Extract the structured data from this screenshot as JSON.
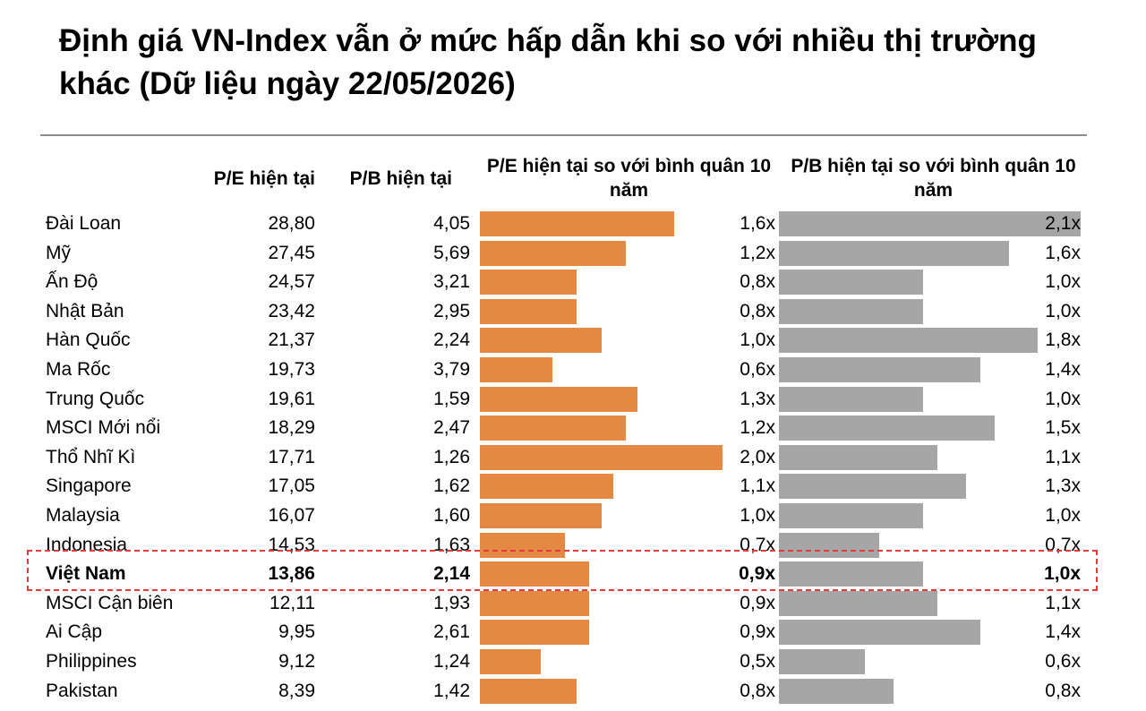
{
  "title": "Định giá VN-Index vẫn ở mức hấp dẫn khi so với nhiều thị trường khác (Dữ liệu ngày 22/05/2026)",
  "headers": {
    "pe": "P/E hiện tại",
    "pb": "P/B hiện tại",
    "pe_ratio": "P/E hiện tại so với bình quân 10 năm",
    "pb_ratio": "P/B hiện tại so với bình quân 10 năm"
  },
  "highlight_color": "#e03a3a",
  "chart_data": {
    "type": "table",
    "title": "Định giá VN-Index vẫn ở mức hấp dẫn khi so với nhiều thị trường khác (Dữ liệu ngày 22/05/2026)",
    "columns": [
      "",
      "P/E hiện tại",
      "P/B hiện tại",
      "P/E hiện tại so với bình quân 10 năm",
      "P/B hiện tại so với bình quân 10 năm"
    ],
    "bar_colors": {
      "pe_ratio": "#e38944",
      "pb_ratio": "#a6a6a6"
    },
    "highlighted_row": "Việt Nam",
    "rows": [
      {
        "market": "Đài Loan",
        "pe": "28,80",
        "pb": "4,05",
        "pe_ratio": 1.6,
        "pe_ratio_label": "1,6x",
        "pb_ratio": 2.1,
        "pb_ratio_label": "2,1x"
      },
      {
        "market": "Mỹ",
        "pe": "27,45",
        "pb": "5,69",
        "pe_ratio": 1.2,
        "pe_ratio_label": "1,2x",
        "pb_ratio": 1.6,
        "pb_ratio_label": "1,6x"
      },
      {
        "market": "Ấn Độ",
        "pe": "24,57",
        "pb": "3,21",
        "pe_ratio": 0.8,
        "pe_ratio_label": "0,8x",
        "pb_ratio": 1.0,
        "pb_ratio_label": "1,0x"
      },
      {
        "market": "Nhật Bản",
        "pe": "23,42",
        "pb": "2,95",
        "pe_ratio": 0.8,
        "pe_ratio_label": "0,8x",
        "pb_ratio": 1.0,
        "pb_ratio_label": "1,0x"
      },
      {
        "market": "Hàn Quốc",
        "pe": "21,37",
        "pb": "2,24",
        "pe_ratio": 1.0,
        "pe_ratio_label": "1,0x",
        "pb_ratio": 1.8,
        "pb_ratio_label": "1,8x"
      },
      {
        "market": "Ma Rốc",
        "pe": "19,73",
        "pb": "3,79",
        "pe_ratio": 0.6,
        "pe_ratio_label": "0,6x",
        "pb_ratio": 1.4,
        "pb_ratio_label": "1,4x"
      },
      {
        "market": "Trung Quốc",
        "pe": "19,61",
        "pb": "1,59",
        "pe_ratio": 1.3,
        "pe_ratio_label": "1,3x",
        "pb_ratio": 1.0,
        "pb_ratio_label": "1,0x"
      },
      {
        "market": "MSCI Mới nổi",
        "pe": "18,29",
        "pb": "2,47",
        "pe_ratio": 1.2,
        "pe_ratio_label": "1,2x",
        "pb_ratio": 1.5,
        "pb_ratio_label": "1,5x"
      },
      {
        "market": "Thổ Nhĩ Kì",
        "pe": "17,71",
        "pb": "1,26",
        "pe_ratio": 2.0,
        "pe_ratio_label": "2,0x",
        "pb_ratio": 1.1,
        "pb_ratio_label": "1,1x"
      },
      {
        "market": "Singapore",
        "pe": "17,05",
        "pb": "1,62",
        "pe_ratio": 1.1,
        "pe_ratio_label": "1,1x",
        "pb_ratio": 1.3,
        "pb_ratio_label": "1,3x"
      },
      {
        "market": "Malaysia",
        "pe": "16,07",
        "pb": "1,60",
        "pe_ratio": 1.0,
        "pe_ratio_label": "1,0x",
        "pb_ratio": 1.0,
        "pb_ratio_label": "1,0x"
      },
      {
        "market": "Indonesia",
        "pe": "14,53",
        "pb": "1,63",
        "pe_ratio": 0.7,
        "pe_ratio_label": "0,7x",
        "pb_ratio": 0.7,
        "pb_ratio_label": "0,7x"
      },
      {
        "market": "Việt Nam",
        "pe": "13,86",
        "pb": "2,14",
        "pe_ratio": 0.9,
        "pe_ratio_label": "0,9x",
        "pb_ratio": 1.0,
        "pb_ratio_label": "1,0x"
      },
      {
        "market": "MSCI Cận biên",
        "pe": "12,11",
        "pb": "1,93",
        "pe_ratio": 0.9,
        "pe_ratio_label": "0,9x",
        "pb_ratio": 1.1,
        "pb_ratio_label": "1,1x"
      },
      {
        "market": "Ai Cập",
        "pe": "9,95",
        "pb": "2,61",
        "pe_ratio": 0.9,
        "pe_ratio_label": "0,9x",
        "pb_ratio": 1.4,
        "pb_ratio_label": "1,4x"
      },
      {
        "market": "Philippines",
        "pe": "9,12",
        "pb": "1,24",
        "pe_ratio": 0.5,
        "pe_ratio_label": "0,5x",
        "pb_ratio": 0.6,
        "pb_ratio_label": "0,6x"
      },
      {
        "market": "Pakistan",
        "pe": "8,39",
        "pb": "1,42",
        "pe_ratio": 0.8,
        "pe_ratio_label": "0,8x",
        "pb_ratio": 0.8,
        "pb_ratio_label": "0,8x"
      }
    ]
  }
}
